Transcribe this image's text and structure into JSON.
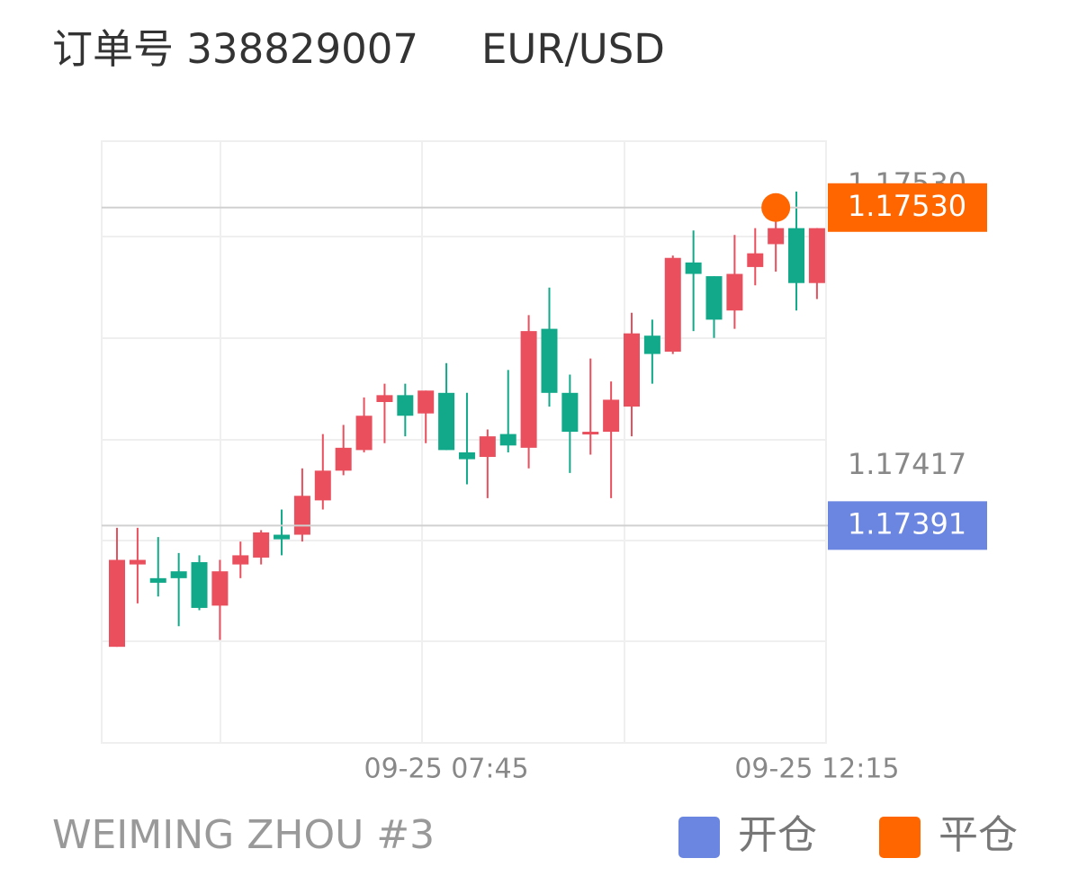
{
  "header": {
    "order": "订单号 338829007",
    "symbol": "EUR/USD"
  },
  "chart_data": {
    "type": "candlestick",
    "categories": [
      null,
      null,
      null,
      null,
      null,
      null,
      null,
      null,
      null,
      null,
      null,
      null,
      null,
      null,
      null,
      null,
      "09-25 07:45",
      null,
      null,
      null,
      null,
      null,
      null,
      null,
      null,
      null,
      null,
      null,
      null,
      null,
      null,
      null,
      null,
      null,
      "09-25 12:15"
    ],
    "open": [
      1.17338,
      1.17374,
      1.17368,
      1.17371,
      1.17375,
      1.17356,
      1.17374,
      1.17377,
      1.17387,
      1.17387,
      1.17402,
      1.17415,
      1.17424,
      1.17445,
      1.17448,
      1.1744,
      1.17449,
      1.17423,
      1.17421,
      1.17431,
      1.17425,
      1.17477,
      1.17449,
      1.17431,
      1.17432,
      1.17443,
      1.17474,
      1.17467,
      1.17506,
      1.175,
      1.17485,
      1.17504,
      1.17514,
      1.17521,
      1.17497
    ],
    "high": [
      1.1739,
      1.1739,
      1.17386,
      1.17379,
      1.17378,
      1.17376,
      1.17384,
      1.17389,
      1.17398,
      1.17416,
      1.17431,
      1.17435,
      1.17447,
      1.17453,
      1.17453,
      1.1745,
      1.17462,
      1.17449,
      1.17433,
      1.17459,
      1.17483,
      1.17495,
      1.17457,
      1.17464,
      1.17454,
      1.17484,
      1.17481,
      1.17509,
      1.1752,
      1.175,
      1.17518,
      1.17521,
      1.17528,
      1.17537,
      1.17521
    ],
    "low": [
      1.17338,
      1.17357,
      1.1736,
      1.17347,
      1.17354,
      1.17341,
      1.17368,
      1.17374,
      1.17378,
      1.17384,
      1.17398,
      1.17413,
      1.17423,
      1.17427,
      1.1743,
      1.17427,
      1.17424,
      1.17409,
      1.17403,
      1.17423,
      1.17416,
      1.17443,
      1.17414,
      1.17422,
      1.17403,
      1.1743,
      1.17453,
      1.17466,
      1.17476,
      1.17473,
      1.17477,
      1.17496,
      1.17502,
      1.17485,
      1.1749
    ],
    "close": [
      1.17376,
      1.17376,
      1.17366,
      1.17368,
      1.17355,
      1.17371,
      1.17378,
      1.17388,
      1.17385,
      1.17404,
      1.17415,
      1.17425,
      1.17439,
      1.17448,
      1.17439,
      1.1745,
      1.17424,
      1.1742,
      1.1743,
      1.17426,
      1.17476,
      1.17449,
      1.17432,
      1.17432,
      1.17446,
      1.17475,
      1.17466,
      1.17508,
      1.17501,
      1.17481,
      1.17501,
      1.1751,
      1.17521,
      1.17497,
      1.17521
    ],
    "up_color": "#e94f5d",
    "down_color": "#12a98a",
    "ylim": [
      1.17296,
      1.17559
    ],
    "yticks": [
      {
        "value": 1.1753,
        "label": "1.17530"
      },
      1.17417
    ],
    "series": [
      {
        "name": "开仓",
        "color": "#6b86e0",
        "value": 1.17391
      },
      {
        "name": "平仓",
        "color": "#ff6600",
        "value": 1.1753,
        "value_label": "1.17530",
        "index": 32
      }
    ],
    "footer": "WEIMING ZHOU #3"
  }
}
